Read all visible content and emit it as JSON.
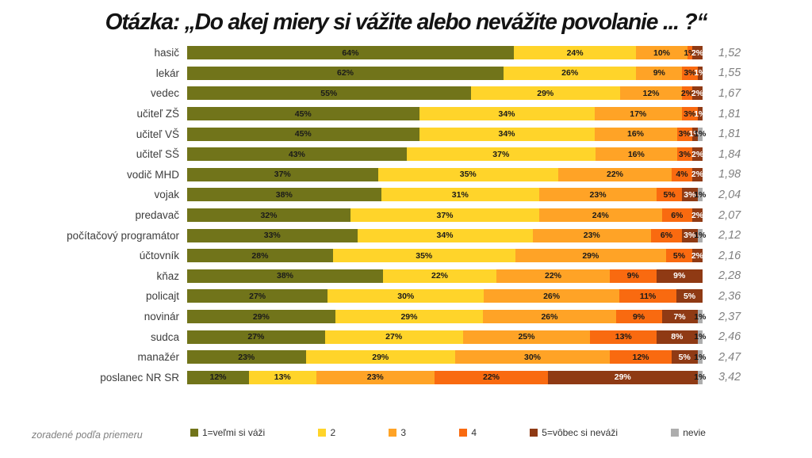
{
  "title": "Otázka: „Do akej miery si vážite alebo nevážite povolanie ... ?“",
  "footnote": "zoradené podľa priemeru",
  "colors": {
    "s1": "#71741A",
    "s2": "#FFD42A",
    "s3": "#FFA326",
    "s4": "#F96A10",
    "s5": "#8F3A14",
    "nevie": "#ADADAD",
    "label_dark": "#1a1a1a",
    "label_light": "#ffffff",
    "average_text": "#808080"
  },
  "legend": [
    {
      "key": "s1",
      "label": "1=veľmi si váži"
    },
    {
      "key": "s2",
      "label": "2"
    },
    {
      "key": "s3",
      "label": "3"
    },
    {
      "key": "s4",
      "label": "4"
    },
    {
      "key": "s5",
      "label": "5=vôbec si neváži"
    },
    {
      "key": "nevie",
      "label": "nevie"
    }
  ],
  "chart_data": {
    "type": "bar",
    "stacked": true,
    "percent_stacked": true,
    "orientation": "horizontal",
    "unit": "%",
    "series_names": [
      "1=veľmi si váži",
      "2",
      "3",
      "4",
      "5=vôbec si neváži",
      "nevie"
    ],
    "sorted_by": "average ascending",
    "rows": [
      {
        "label": "hasič",
        "values": [
          64,
          24,
          10,
          1,
          2,
          0
        ],
        "average": "1,52"
      },
      {
        "label": "lekár",
        "values": [
          62,
          26,
          9,
          3,
          1,
          0
        ],
        "average": "1,55"
      },
      {
        "label": "vedec",
        "values": [
          55,
          29,
          12,
          2,
          2,
          0
        ],
        "average": "1,67"
      },
      {
        "label": "učiteľ ZŠ",
        "values": [
          45,
          34,
          17,
          3,
          1,
          0
        ],
        "average": "1,81"
      },
      {
        "label": "učiteľ VŠ",
        "values": [
          45,
          34,
          16,
          3,
          1,
          1
        ],
        "average": "1,81"
      },
      {
        "label": "učiteľ SŠ",
        "values": [
          43,
          37,
          16,
          3,
          2,
          0
        ],
        "average": "1,84"
      },
      {
        "label": "vodič MHD",
        "values": [
          37,
          35,
          22,
          4,
          2,
          0
        ],
        "average": "1,98"
      },
      {
        "label": "vojak",
        "values": [
          38,
          31,
          23,
          5,
          3,
          1
        ],
        "average": "2,04"
      },
      {
        "label": "predavač",
        "values": [
          32,
          37,
          24,
          6,
          2,
          0
        ],
        "average": "2,07"
      },
      {
        "label": "počítačový programátor",
        "values": [
          33,
          34,
          23,
          6,
          3,
          1
        ],
        "average": "2,12"
      },
      {
        "label": "účtovník",
        "values": [
          28,
          35,
          29,
          5,
          2,
          0
        ],
        "average": "2,16"
      },
      {
        "label": "kňaz",
        "values": [
          38,
          22,
          22,
          9,
          9,
          0
        ],
        "average": "2,28"
      },
      {
        "label": "policajt",
        "values": [
          27,
          30,
          26,
          11,
          5,
          0
        ],
        "average": "2,36"
      },
      {
        "label": "novinár",
        "values": [
          29,
          29,
          26,
          9,
          7,
          1
        ],
        "average": "2,37"
      },
      {
        "label": "sudca",
        "values": [
          27,
          27,
          25,
          13,
          8,
          1
        ],
        "average": "2,46"
      },
      {
        "label": "manažér",
        "values": [
          23,
          29,
          30,
          12,
          5,
          1
        ],
        "average": "2,47"
      },
      {
        "label": "poslanec NR SR",
        "values": [
          12,
          13,
          23,
          22,
          29,
          1
        ],
        "average": "3,42"
      }
    ]
  }
}
